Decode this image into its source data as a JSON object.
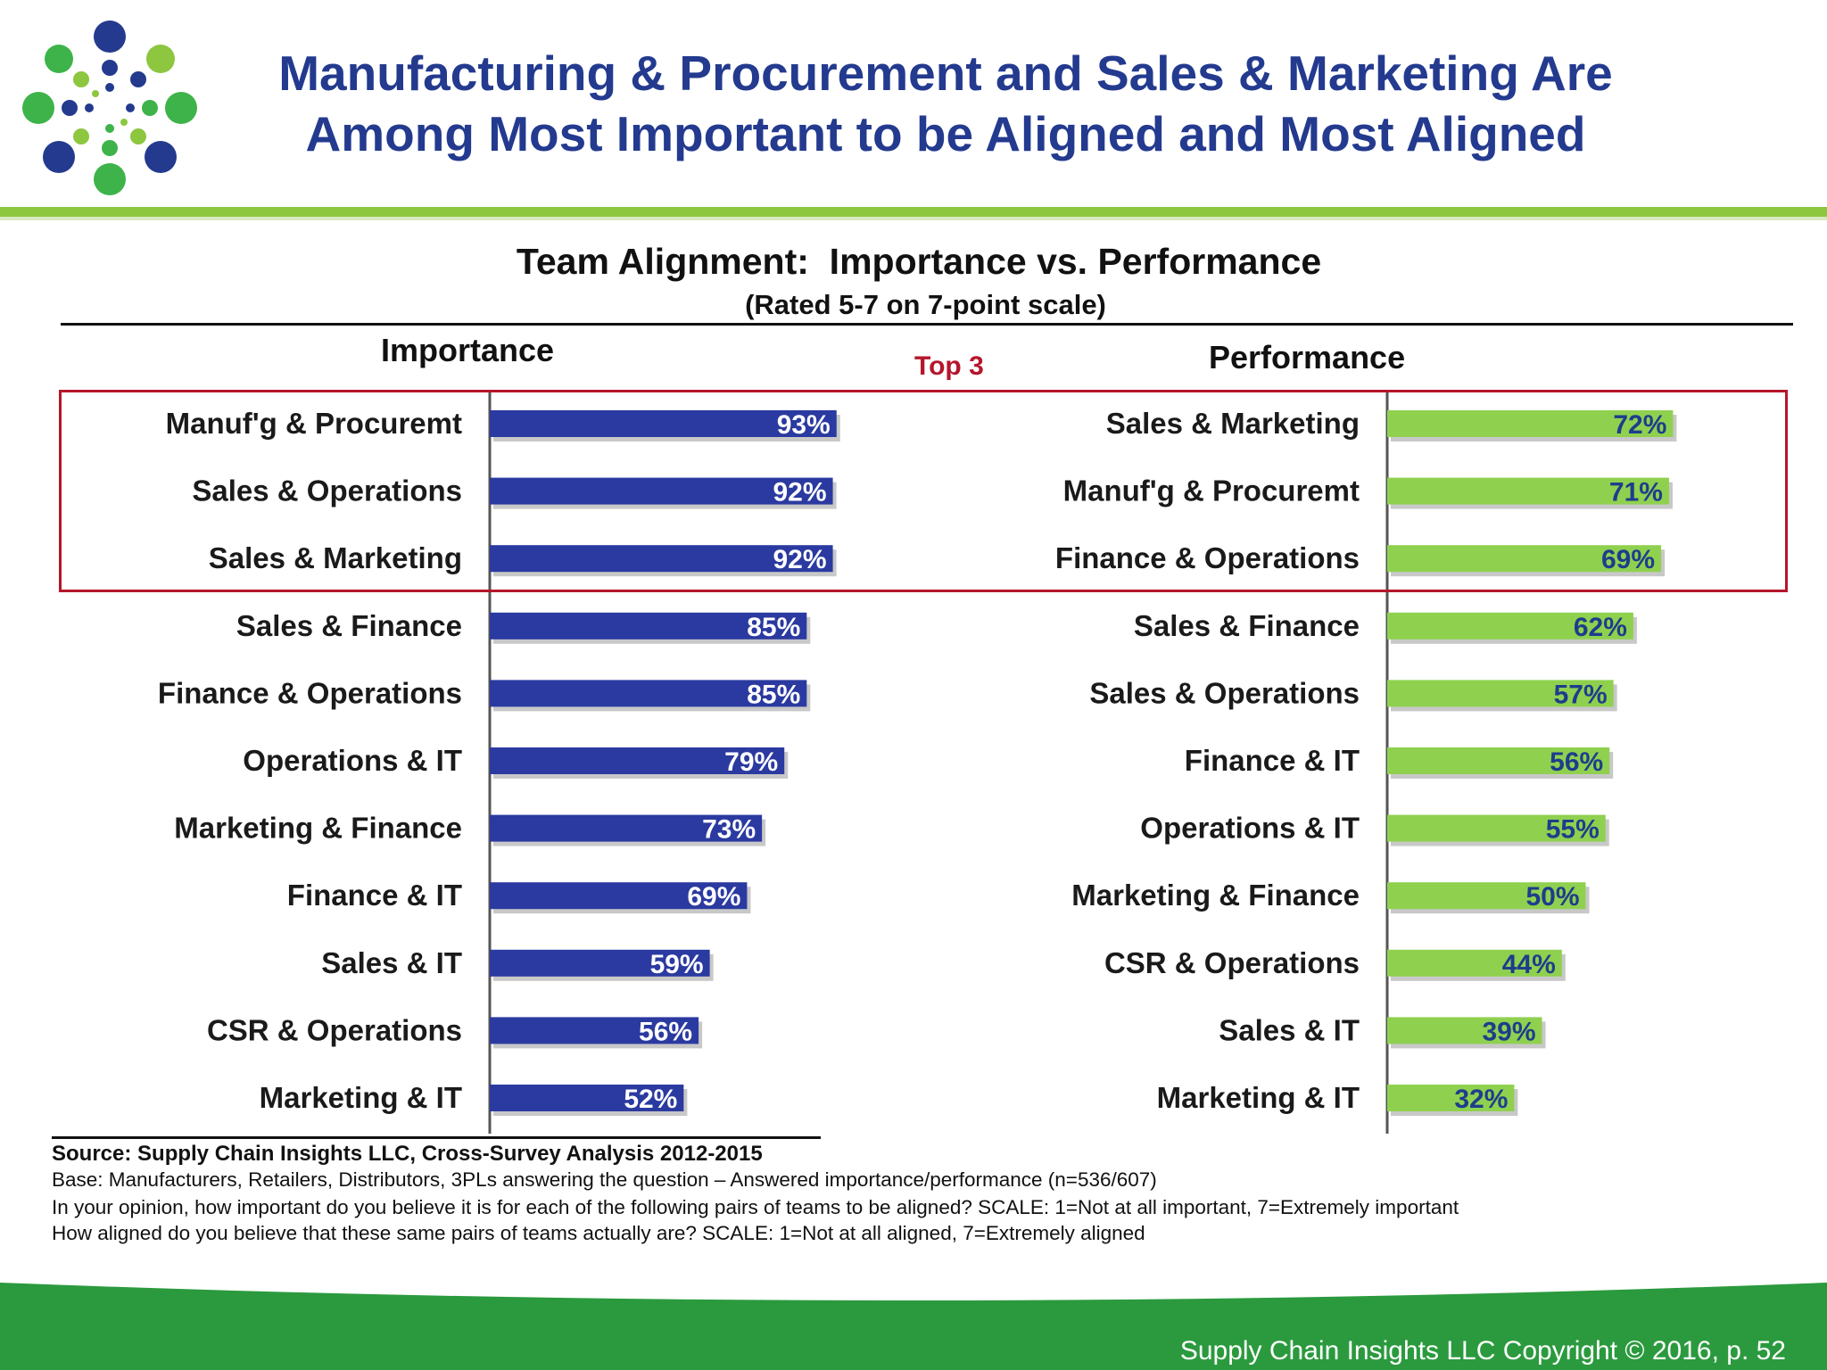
{
  "slide": {
    "title_line1": "Manufacturing & Procurement and Sales & Marketing Are",
    "title_line2": "Among Most  Important to be Aligned and Most  Aligned",
    "logo_icon": "dots-cluster-logo-icon"
  },
  "colors": {
    "title_blue": "#233a8f",
    "importance_bar": "#2b3aa0",
    "performance_bar": "#8fd14f",
    "performance_label": "#1d3d8c",
    "top3_red": "#b5162b",
    "footer_green": "#2b9a3e",
    "rule_green": "#8dc63f"
  },
  "chart_data": [
    {
      "type": "bar",
      "orientation": "horizontal",
      "title": "Team Alignment:  Importance vs. Performance",
      "subtitle": "(Rated 5-7 on 7-point scale)",
      "panel_title": "Importance",
      "categories": [
        "Manuf'g & Procuremt",
        "Sales & Operations",
        "Sales & Marketing",
        "Sales & Finance",
        "Finance & Operations",
        "Operations & IT",
        "Marketing & Finance",
        "Finance & IT",
        "Sales & IT",
        "CSR & Operations",
        "Marketing & IT"
      ],
      "values": [
        93,
        92,
        92,
        85,
        85,
        79,
        73,
        69,
        59,
        56,
        52
      ],
      "value_labels": [
        "93%",
        "92%",
        "92%",
        "85%",
        "85%",
        "79%",
        "73%",
        "69%",
        "59%",
        "56%",
        "52%"
      ],
      "unit": "%",
      "xlim": [
        0,
        100
      ],
      "grid": false,
      "highlight": {
        "label": "Top 3",
        "count": 3
      }
    },
    {
      "type": "bar",
      "orientation": "horizontal",
      "panel_title": "Performance",
      "categories": [
        "Sales & Marketing",
        "Manuf'g & Procuremt",
        "Finance & Operations",
        "Sales & Finance",
        "Sales & Operations",
        "Finance & IT",
        "Operations & IT",
        "Marketing & Finance",
        "CSR & Operations",
        "Sales & IT",
        "Marketing & IT"
      ],
      "values": [
        72,
        71,
        69,
        62,
        57,
        56,
        55,
        50,
        44,
        39,
        32
      ],
      "value_labels": [
        "72%",
        "71%",
        "69%",
        "62%",
        "57%",
        "56%",
        "55%",
        "50%",
        "44%",
        "39%",
        "32%"
      ],
      "unit": "%",
      "xlim": [
        0,
        100
      ],
      "grid": false,
      "highlight": {
        "label": "Top 3",
        "count": 3
      }
    }
  ],
  "source": {
    "line1": "Source:  Supply Chain Insights LLC, Cross-Survey Analysis 2012-2015",
    "line2": "Base:  Manufacturers,  Retailers,  Distributors,  3PLs answering  the question – Answered importance/performance (n=536/607)",
    "line3": "In your opinion,  how important do you believe it is for each of the  following pairs of teams to be aligned?  SCALE: 1=Not at all important,  7=Extremely important",
    "line4": "How aligned do you believe that  these same pairs of teams actually  are?  SCALE: 1=Not at all aligned, 7=Extremely aligned"
  },
  "footer": {
    "copyright": "Supply Chain Insights LLC Copyright © 2016, p. 52"
  }
}
